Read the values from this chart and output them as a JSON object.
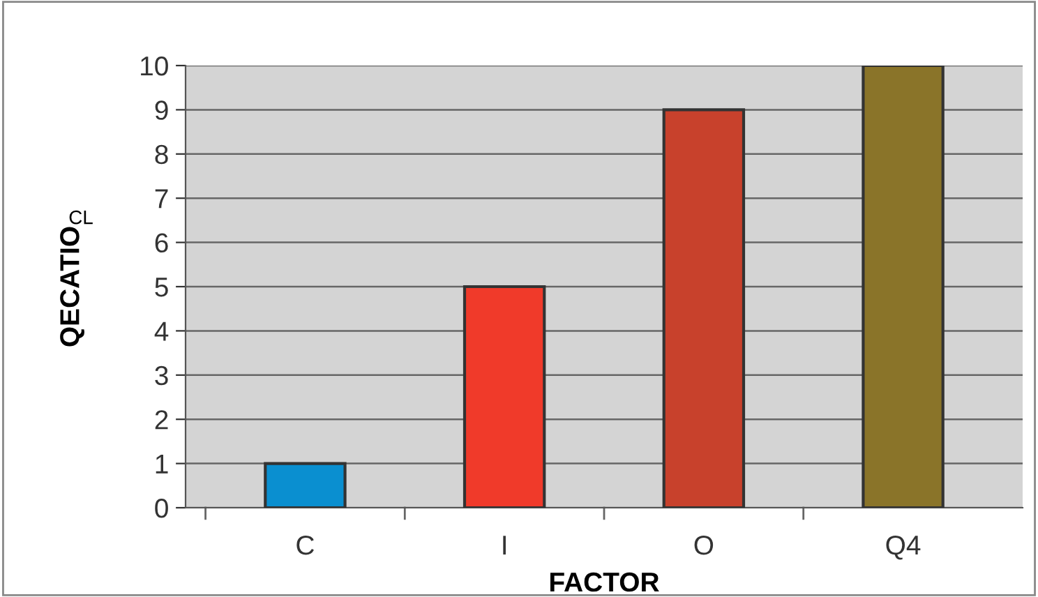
{
  "chart_data": {
    "type": "bar",
    "xlabel": "FACTOR",
    "ylabel": "QECATIO",
    "annotations": [
      "CL"
    ],
    "categories": [
      "C",
      "I",
      "O",
      "Q4"
    ],
    "values": [
      1,
      5,
      9,
      10
    ],
    "colors": [
      "#0a8fd0",
      "#f03a2a",
      "#c8412c",
      "#8a7429"
    ],
    "ylim": [
      0,
      10
    ],
    "yticks": [
      0,
      1,
      2,
      3,
      4,
      5,
      6,
      7,
      8,
      9,
      10
    ],
    "grid": "y"
  }
}
